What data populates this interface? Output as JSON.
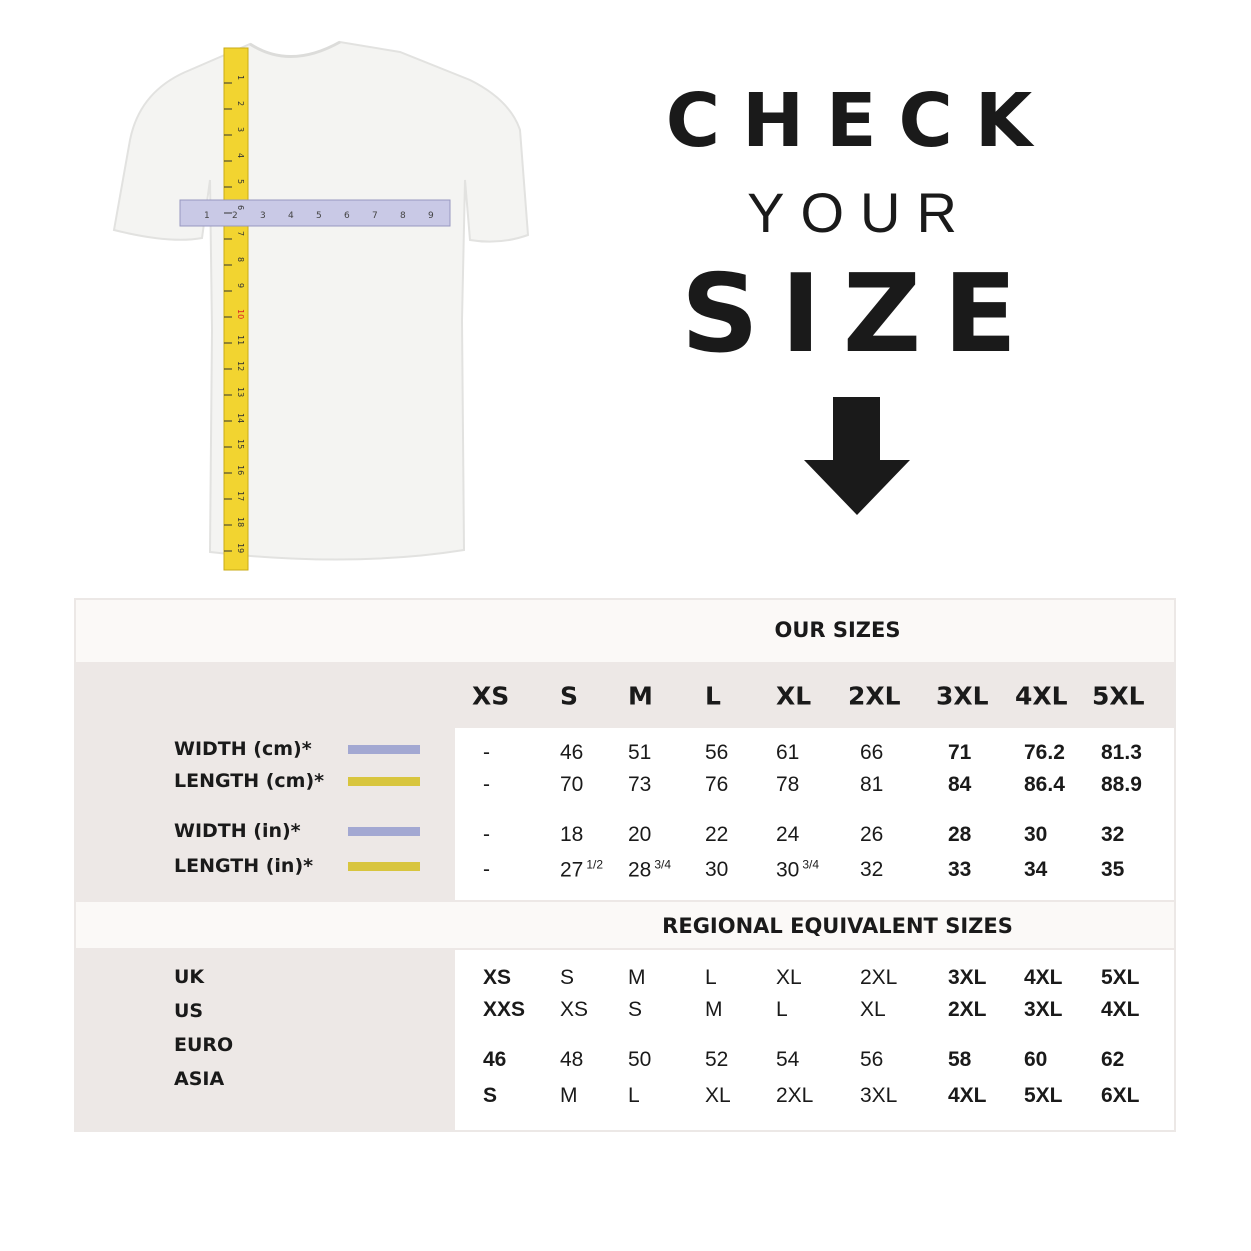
{
  "heading": {
    "line1": "CHECK",
    "line2": "YOUR",
    "line3": "SIZE",
    "arrow_icon": "arrow-down-icon"
  },
  "colors": {
    "width_swatch": "#a3a8d2",
    "length_swatch": "#d8c53e",
    "panel_gray": "#ede8e6",
    "panel_light": "#fbf9f7"
  },
  "illustration": {
    "icon": "tshirt-with-measuring-tapes",
    "vertical_tape_marks": [
      "1",
      "2",
      "3",
      "4",
      "5",
      "6",
      "7",
      "8",
      "9",
      "10",
      "11",
      "12",
      "13",
      "14",
      "15",
      "16",
      "17",
      "18",
      "19"
    ],
    "horizontal_tape_marks": [
      "1",
      "2",
      "3",
      "4",
      "5",
      "6",
      "7",
      "8",
      "9"
    ]
  },
  "our_sizes": {
    "title": "OUR SIZES",
    "columns": [
      "XS",
      "S",
      "M",
      "L",
      "XL",
      "2XL",
      "3XL",
      "4XL",
      "5XL"
    ],
    "rows": [
      {
        "label": "WIDTH (cm)*",
        "swatch": "width",
        "values": [
          [
            "-"
          ],
          [
            "46"
          ],
          [
            "51"
          ],
          [
            "56"
          ],
          [
            "61"
          ],
          [
            "66"
          ],
          [
            "71"
          ],
          [
            "76.2"
          ],
          [
            "81.3"
          ]
        ]
      },
      {
        "label": "LENGTH (cm)*",
        "swatch": "length",
        "values": [
          [
            "-"
          ],
          [
            "70"
          ],
          [
            "73"
          ],
          [
            "76"
          ],
          [
            "78"
          ],
          [
            "81"
          ],
          [
            "84"
          ],
          [
            "86.4"
          ],
          [
            "88.9"
          ]
        ]
      },
      {
        "label": "WIDTH (in)*",
        "swatch": "width",
        "values": [
          [
            "-"
          ],
          [
            "18"
          ],
          [
            "20"
          ],
          [
            "22"
          ],
          [
            "24"
          ],
          [
            "26"
          ],
          [
            "28"
          ],
          [
            "30"
          ],
          [
            "32"
          ]
        ]
      },
      {
        "label": "LENGTH (in)*",
        "swatch": "length",
        "values": [
          [
            "-"
          ],
          [
            "27",
            "1/2"
          ],
          [
            "28",
            "3/4"
          ],
          [
            "30"
          ],
          [
            "30",
            "3/4"
          ],
          [
            "32"
          ],
          [
            "33"
          ],
          [
            "34"
          ],
          [
            "35"
          ]
        ]
      }
    ]
  },
  "regional": {
    "title": "REGIONAL EQUIVALENT SIZES",
    "labels": [
      "UK",
      "US",
      "EURO",
      "ASIA"
    ],
    "rows": [
      [
        "XS",
        "S",
        "M",
        "L",
        "XL",
        "2XL",
        "3XL",
        "4XL",
        "5XL"
      ],
      [
        "XXS",
        "XS",
        "S",
        "M",
        "L",
        "XL",
        "2XL",
        "3XL",
        "4XL"
      ],
      [
        "46",
        "48",
        "50",
        "52",
        "54",
        "56",
        "58",
        "60",
        "62"
      ],
      [
        "S",
        "M",
        "L",
        "XL",
        "2XL",
        "3XL",
        "4XL",
        "5XL",
        "6XL"
      ]
    ]
  }
}
